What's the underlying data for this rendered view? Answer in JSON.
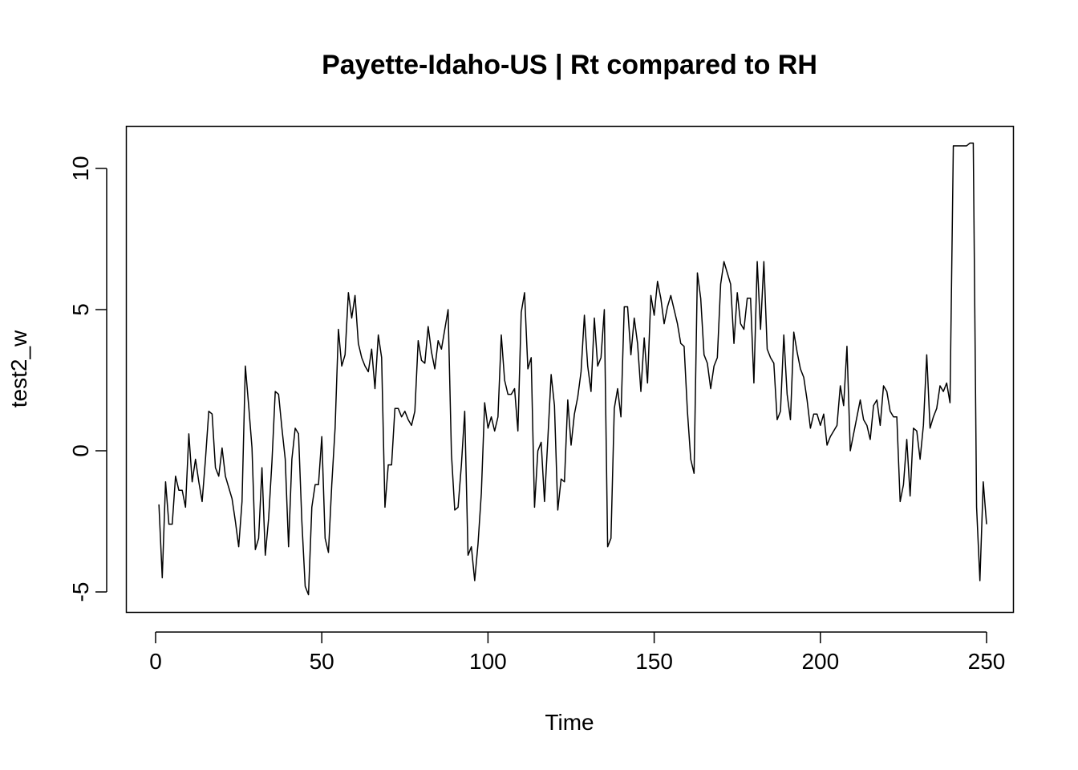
{
  "chart_data": {
    "type": "line",
    "title": "Payette-Idaho-US | Rt compared to RH",
    "xlabel": "Time",
    "ylabel": "test2_w",
    "xlim": [
      0,
      250
    ],
    "ylim": [
      -5.5,
      11.5
    ],
    "x_ticks": [
      0,
      50,
      100,
      150,
      200,
      250
    ],
    "x_tick_labels": [
      "0",
      "50",
      "100",
      "150",
      "200",
      "250"
    ],
    "y_ticks": [
      -5,
      0,
      5,
      10
    ],
    "y_tick_labels": [
      "-5",
      "0",
      "5",
      "10"
    ],
    "grid": false,
    "legend": "none",
    "line_color": "#000000",
    "x_start": 1,
    "series": [
      {
        "values": [
          -1.9,
          -4.5,
          -1.1,
          -2.6,
          -2.6,
          -0.9,
          -1.4,
          -1.4,
          -2.0,
          0.6,
          -1.1,
          -0.3,
          -1.1,
          -1.8,
          -0.3,
          1.4,
          1.3,
          -0.6,
          -0.9,
          0.1,
          -0.9,
          -1.3,
          -1.7,
          -2.5,
          -3.4,
          -1.8,
          3.0,
          1.6,
          0.1,
          -3.5,
          -3.1,
          -0.6,
          -3.7,
          -2.4,
          -0.4,
          2.1,
          2.0,
          0.8,
          -0.3,
          -3.4,
          -0.3,
          0.8,
          0.6,
          -2.5,
          -4.8,
          -5.1,
          -2.0,
          -1.2,
          -1.2,
          0.5,
          -3.1,
          -3.6,
          -1.2,
          0.8,
          4.3,
          3.0,
          3.4,
          5.6,
          4.7,
          5.5,
          3.8,
          3.3,
          3.0,
          2.8,
          3.6,
          2.2,
          4.1,
          3.3,
          -2.0,
          -0.5,
          -0.5,
          1.5,
          1.5,
          1.2,
          1.4,
          1.1,
          0.9,
          1.4,
          3.9,
          3.2,
          3.1,
          4.4,
          3.5,
          2.9,
          3.9,
          3.6,
          4.3,
          5.0,
          -0.1,
          -2.1,
          -2.0,
          -0.5,
          1.4,
          -3.7,
          -3.4,
          -4.6,
          -3.3,
          -1.5,
          1.7,
          0.8,
          1.2,
          0.7,
          1.2,
          4.1,
          2.5,
          2.0,
          2.0,
          2.2,
          0.7,
          4.9,
          5.6,
          2.9,
          3.3,
          -2.0,
          0.0,
          0.3,
          -1.8,
          0.4,
          2.7,
          1.6,
          -2.1,
          -1.0,
          -1.1,
          1.8,
          0.2,
          1.3,
          1.9,
          2.8,
          4.8,
          3.0,
          2.1,
          4.7,
          3.0,
          3.3,
          5.0,
          -3.4,
          -3.1,
          1.5,
          2.2,
          1.2,
          5.1,
          5.1,
          3.4,
          4.7,
          3.8,
          2.1,
          4.0,
          2.4,
          5.5,
          4.8,
          6.0,
          5.4,
          4.5,
          5.1,
          5.5,
          5.0,
          4.5,
          3.8,
          3.7,
          1.4,
          -0.3,
          -0.8,
          6.3,
          5.4,
          3.4,
          3.1,
          2.2,
          3.0,
          3.3,
          5.9,
          6.7,
          6.3,
          5.9,
          3.8,
          5.6,
          4.5,
          4.3,
          5.4,
          5.4,
          2.4,
          6.7,
          4.3,
          6.7,
          3.6,
          3.3,
          3.1,
          1.1,
          1.4,
          4.1,
          2.0,
          1.1,
          4.2,
          3.5,
          2.9,
          2.6,
          1.8,
          0.8,
          1.3,
          1.3,
          0.9,
          1.3,
          0.2,
          0.5,
          0.7,
          0.9,
          2.3,
          1.6,
          3.7,
          0.0,
          0.6,
          1.2,
          1.8,
          1.1,
          0.9,
          0.4,
          1.6,
          1.8,
          0.9,
          2.3,
          2.1,
          1.4,
          1.2,
          1.2,
          -1.8,
          -1.2,
          0.4,
          -1.6,
          0.8,
          0.7,
          -0.3,
          0.9,
          3.4,
          0.8,
          1.2,
          1.5,
          2.3,
          2.1,
          2.4,
          1.7,
          10.8,
          10.8,
          10.8,
          10.8,
          10.8,
          10.9,
          10.9,
          -2.0,
          -4.6,
          -1.1,
          -2.6
        ]
      }
    ]
  }
}
